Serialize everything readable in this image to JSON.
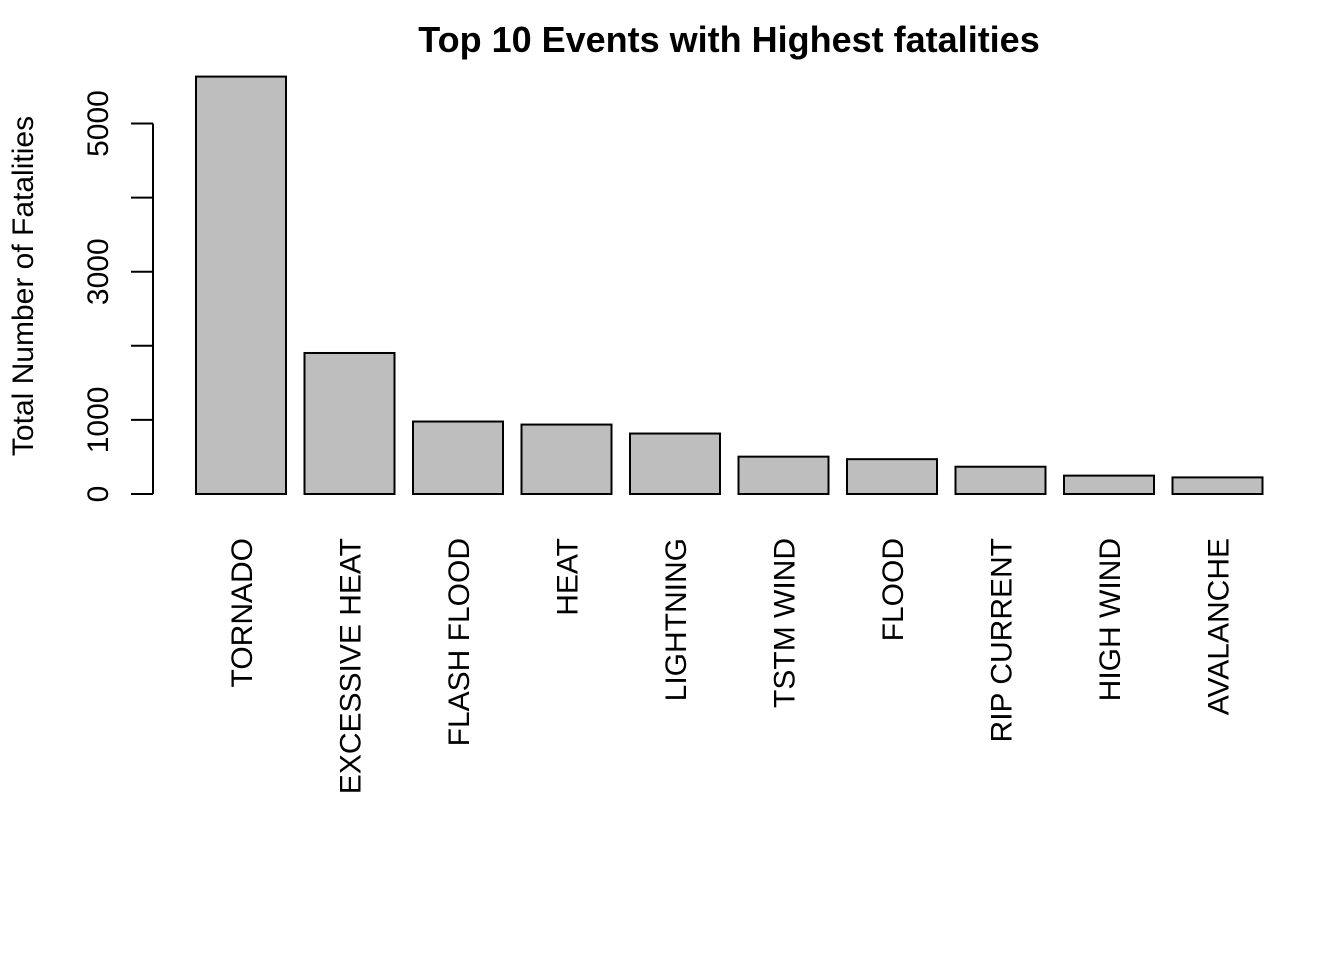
{
  "chart_data": {
    "type": "bar",
    "title": "Top 10 Events with Highest fatalities",
    "xlabel": "",
    "ylabel": "Total Number of Fatalities",
    "categories": [
      "TORNADO",
      "EXCESSIVE HEAT",
      "FLASH FLOOD",
      "HEAT",
      "LIGHTNING",
      "TSTM WIND",
      "FLOOD",
      "RIP CURRENT",
      "HIGH WIND",
      "AVALANCHE"
    ],
    "values": [
      5633,
      1903,
      978,
      937,
      816,
      504,
      470,
      368,
      248,
      224
    ],
    "yticks": [
      0,
      1000,
      2000,
      3000,
      4000,
      5000
    ],
    "ytick_labels": [
      "0",
      "1000",
      "",
      "3000",
      "",
      "5000"
    ],
    "ylim": [
      0,
      5633
    ],
    "colors": {
      "bar_fill": "#bebebe",
      "bar_stroke": "#000000"
    },
    "grid": false,
    "legend": "none"
  }
}
